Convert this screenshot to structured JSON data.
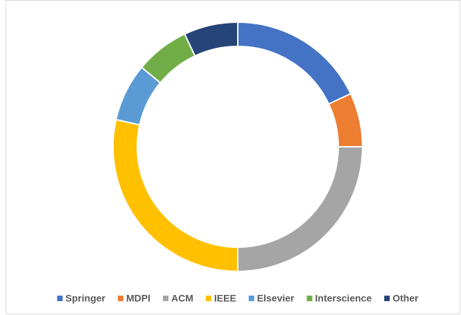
{
  "chart_data": {
    "type": "donut",
    "categories": [
      "Springer",
      "MDPI",
      "ACM",
      "IEEE",
      "Elsevier",
      "Interscience",
      "Other"
    ],
    "values": [
      18,
      7,
      25,
      28.5,
      7.5,
      7,
      7
    ],
    "colors": [
      "#4472c4",
      "#ed7d31",
      "#a5a5a5",
      "#ffc000",
      "#5b9bd5",
      "#70ad47",
      "#264478"
    ],
    "legend": "bottom"
  }
}
